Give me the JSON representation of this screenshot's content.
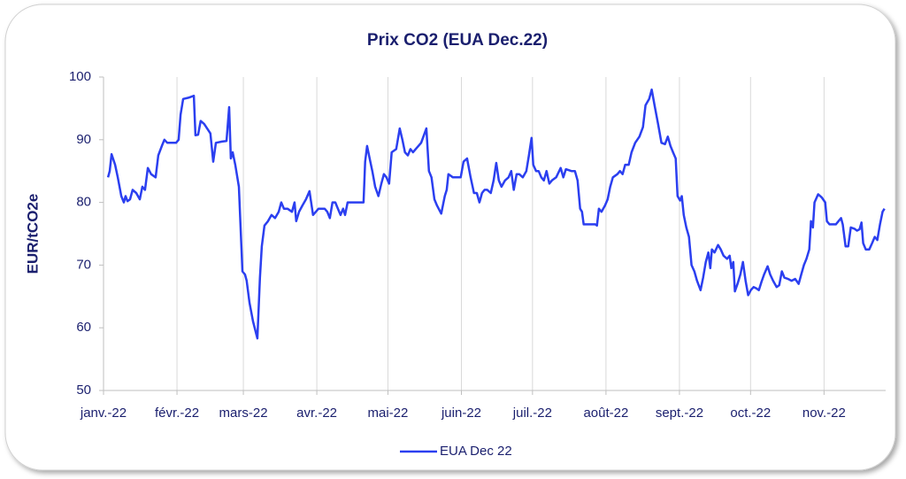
{
  "chart_data": {
    "type": "line",
    "title": "Prix CO2 (EUA Dec.22)",
    "y_label": "EUR/tCO2e",
    "xlim": [
      0,
      330
    ],
    "ylim": [
      50,
      100
    ],
    "yticks": [
      50,
      60,
      70,
      80,
      90,
      100
    ],
    "xticks": [
      {
        "value": 0,
        "label": "janv.-22"
      },
      {
        "value": 31,
        "label": "févr.-22"
      },
      {
        "value": 59,
        "label": "mars-22"
      },
      {
        "value": 90,
        "label": "avr.-22"
      },
      {
        "value": 120,
        "label": "mai-22"
      },
      {
        "value": 151,
        "label": "juin-22"
      },
      {
        "value": 181,
        "label": "juil.-22"
      },
      {
        "value": 212,
        "label": "août-22"
      },
      {
        "value": 243,
        "label": "sept.-22"
      },
      {
        "value": 273,
        "label": "oct.-22"
      },
      {
        "value": 304,
        "label": "nov.-22"
      }
    ],
    "grid": "x",
    "legend": "bottom",
    "x": [
      1.9,
      2.6,
      3.4,
      4.9,
      6.0,
      7.5,
      8.6,
      9.3,
      10.1,
      11.2,
      12.3,
      13.8,
      15.3,
      16.4,
      17.5,
      18.7,
      20.1,
      22.0,
      23.1,
      24.6,
      25.7,
      26.9,
      28.7,
      30.6,
      31.7,
      32.5,
      33.6,
      35.8,
      38.1,
      38.8,
      39.9,
      41.0,
      42.5,
      43.7,
      45.1,
      46.3,
      47.4,
      50.0,
      51.9,
      53.0,
      53.7,
      54.5,
      55.6,
      57.1,
      58.6,
      59.7,
      60.4,
      61.6,
      63.1,
      64.9,
      66.0,
      66.8,
      67.9,
      69.4,
      70.9,
      72.4,
      73.9,
      75.0,
      76.1,
      77.6,
      79.5,
      80.6,
      81.3,
      82.5,
      83.9,
      85.4,
      86.9,
      88.4,
      89.6,
      90.7,
      93.3,
      94.4,
      95.5,
      96.6,
      97.8,
      98.9,
      100.0,
      101.1,
      101.9,
      103.0,
      104.9,
      107.1,
      109.7,
      110.4,
      111.2,
      112.3,
      113.4,
      114.6,
      116.0,
      117.2,
      118.3,
      119.4,
      120.5,
      121.6,
      123.5,
      125.0,
      126.1,
      127.2,
      128.4,
      129.5,
      130.6,
      131.7,
      134.0,
      136.2,
      137.3,
      138.4,
      139.6,
      140.7,
      142.5,
      144.0,
      144.8,
      145.5,
      147.4,
      149.3,
      150.7,
      151.9,
      153.4,
      154.9,
      156.3,
      157.5,
      158.6,
      159.7,
      160.8,
      161.9,
      163.4,
      164.6,
      165.7,
      166.8,
      167.9,
      169.4,
      170.9,
      172.0,
      173.1,
      174.3,
      175.4,
      176.9,
      178.4,
      179.5,
      180.6,
      181.3,
      182.5,
      183.6,
      184.7,
      185.8,
      186.9,
      188.1,
      189.2,
      191.0,
      192.9,
      194.0,
      195.1,
      197.4,
      198.9,
      200.0,
      201.1,
      201.9,
      202.6,
      204.1,
      206.3,
      207.5,
      208.2,
      209.0,
      210.1,
      211.6,
      212.7,
      213.8,
      214.9,
      216.8,
      217.9,
      219.0,
      220.1,
      221.6,
      222.8,
      224.3,
      226.1,
      227.6,
      228.7,
      230.2,
      231.3,
      232.5,
      234.0,
      235.4,
      236.9,
      238.1,
      239.2,
      240.3,
      241.4,
      242.2,
      243.3,
      244.0,
      244.8,
      245.9,
      247.0,
      248.1,
      249.3,
      250.4,
      251.9,
      253.0,
      254.1,
      255.2,
      256.0,
      256.7,
      257.8,
      259.3,
      260.4,
      261.6,
      263.1,
      264.2,
      264.9,
      265.7,
      266.4,
      267.5,
      268.7,
      269.8,
      270.9,
      272.0,
      273.1,
      274.3,
      275.4,
      276.5,
      277.6,
      278.7,
      280.2,
      281.3,
      282.5,
      284.0,
      285.1,
      286.2,
      287.3,
      288.8,
      290.3,
      291.8,
      293.3,
      294.4,
      295.5,
      296.6,
      297.8,
      298.5,
      299.3,
      300.0,
      301.5,
      303.0,
      304.5,
      305.2,
      306.3,
      307.5,
      309.0,
      310.1,
      311.2,
      311.9,
      313.1,
      314.2,
      315.3,
      316.8,
      317.9,
      319.0,
      319.8,
      320.5,
      321.6,
      323.1,
      324.3,
      325.4,
      326.5,
      327.6,
      328.7,
      329.5
    ],
    "series": [
      {
        "name": "EUA Dec 22",
        "color": "#2b3ff0",
        "values": [
          84,
          85,
          87.7,
          86,
          84,
          81,
          80,
          81,
          80.2,
          80.5,
          82,
          81.5,
          80.5,
          82.5,
          82,
          85.5,
          84.5,
          84,
          87.5,
          89,
          90,
          89.5,
          89.5,
          89.5,
          90,
          94,
          96.5,
          96.7,
          97,
          90.7,
          90.8,
          93,
          92.5,
          91.8,
          91,
          86.5,
          89.5,
          89.7,
          89.8,
          95.2,
          87,
          88,
          86,
          82.5,
          69,
          68.5,
          67.5,
          64,
          61,
          58.3,
          68,
          73,
          76.3,
          77,
          78,
          77.5,
          78.5,
          80,
          79,
          79,
          78.5,
          80,
          77,
          78.5,
          79.5,
          80.5,
          81.8,
          78,
          78.5,
          79,
          79,
          78.5,
          77.5,
          80,
          80,
          79,
          78,
          79,
          78,
          80,
          80,
          80,
          80,
          86.5,
          89,
          87,
          85,
          82.5,
          81,
          83,
          84.5,
          84,
          83,
          88,
          88.5,
          91.8,
          90,
          88,
          87.5,
          88.5,
          88,
          88.5,
          89.5,
          91.8,
          85,
          84,
          80.5,
          79.5,
          78.2,
          81,
          82,
          84.5,
          84,
          84,
          84,
          86.5,
          87,
          84,
          81.5,
          81.5,
          80,
          81.5,
          82,
          82,
          81.5,
          83.5,
          86.3,
          83.5,
          82.5,
          83.5,
          84,
          85,
          82,
          84.5,
          84.5,
          84,
          85,
          87.5,
          90.3,
          86,
          85,
          85,
          84,
          83.5,
          85,
          83,
          83.5,
          84,
          85.5,
          84,
          85.3,
          85,
          85,
          83.5,
          79,
          78.5,
          76.5,
          76.5,
          76.5,
          76.5,
          76.3,
          79,
          78.5,
          79.5,
          80.5,
          82.5,
          84,
          84.5,
          85,
          84.5,
          86,
          86,
          88,
          89.5,
          90.5,
          92,
          95.5,
          96.5,
          98,
          95.5,
          92.5,
          89.5,
          89.3,
          90.5,
          89,
          88,
          87,
          81,
          80.3,
          81,
          78,
          76,
          74.5,
          70,
          69,
          67.5,
          66,
          68,
          70.5,
          72,
          69.5,
          72.5,
          72,
          73.2,
          72.5,
          71.5,
          71,
          71.5,
          69.5,
          70.5,
          65.8,
          67,
          68.5,
          70.5,
          67.5,
          65.2,
          66,
          66.5,
          66.3,
          66,
          67.3,
          68.5,
          69.8,
          68.5,
          67.5,
          66.5,
          66.8,
          69,
          68,
          67.8,
          67.5,
          67.8,
          67,
          68.5,
          70,
          71,
          72.5,
          77,
          76,
          80,
          81.3,
          80.8,
          80,
          77,
          76.5,
          76.5,
          76.5,
          77,
          77.5,
          76.5,
          73,
          73,
          76,
          75.8,
          75.5,
          75.7,
          76.8,
          73.5,
          72.5,
          72.5,
          73.5,
          74.5,
          74,
          76.5,
          78.5,
          79
        ]
      }
    ]
  }
}
